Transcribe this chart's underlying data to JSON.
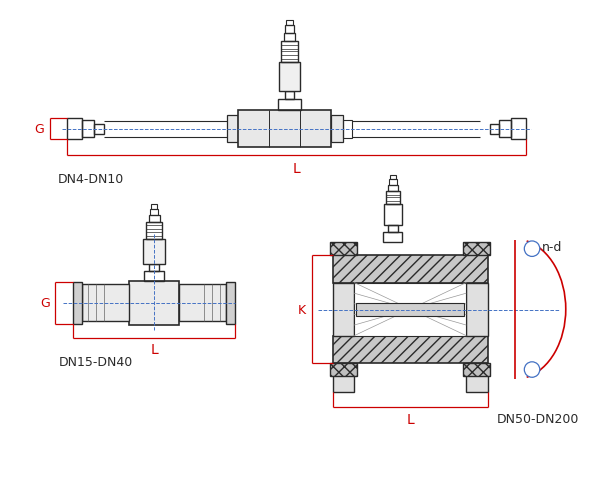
{
  "bg_color": "#ffffff",
  "line_color": "#2a2a2a",
  "red_color": "#cc0000",
  "blue_color": "#4472c4",
  "gray_color": "#888888",
  "labels": {
    "dn4": "DN4-DN10",
    "dn15": "DN15-DN40",
    "dn50": "DN50-DN200",
    "G": "G",
    "L": "L",
    "K": "K",
    "nd": "n-d"
  },
  "figsize": [
    6.0,
    4.81
  ],
  "dpi": 100
}
